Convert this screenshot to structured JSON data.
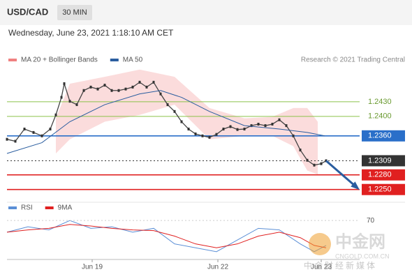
{
  "header": {
    "symbol": "USD/CAD",
    "timeframe": "30 MIN",
    "datetime": "Wednesday, June 23, 2021 1:18:10 AM CET",
    "credit": "Research © 2021 Trading Central"
  },
  "watermark": {
    "brand": "中金网",
    "site": "CNGOLD.COM.CN",
    "tagline": "中金财经新媒体"
  },
  "chart_data": [
    {
      "type": "line",
      "xlim": [
        0,
        505
      ],
      "ylim": [
        1.2231,
        1.2507
      ],
      "xticks": [
        {
          "value": 122,
          "label": "Jun 19"
        },
        {
          "value": 302,
          "label": "Jun 22"
        },
        {
          "value": 450,
          "label": "Jun 23"
        }
      ],
      "price": {
        "color": "#444444",
        "x": [
          0,
          12,
          25,
          38,
          50,
          62,
          70,
          78,
          82,
          90,
          100,
          110,
          120,
          130,
          140,
          150,
          160,
          170,
          180,
          190,
          200,
          210,
          220,
          230,
          240,
          250,
          260,
          270,
          280,
          290,
          300,
          310,
          320,
          330,
          340,
          350,
          360,
          370,
          380,
          390,
          400,
          410,
          420,
          430,
          440,
          450,
          457
        ],
        "values": [
          1.2353,
          1.2349,
          1.2374,
          1.2367,
          1.236,
          1.2374,
          1.2403,
          1.2439,
          1.2467,
          1.2431,
          1.2424,
          1.2453,
          1.246,
          1.2456,
          1.2464,
          1.2453,
          1.2453,
          1.2456,
          1.246,
          1.247,
          1.246,
          1.247,
          1.2446,
          1.2424,
          1.241,
          1.2389,
          1.2374,
          1.2364,
          1.236,
          1.2357,
          1.2363,
          1.2374,
          1.2379,
          1.2373,
          1.2374,
          1.2381,
          1.2384,
          1.2381,
          1.2384,
          1.2393,
          1.2381,
          1.236,
          1.2331,
          1.231,
          1.23,
          1.2303,
          1.2309
        ]
      },
      "bands": {
        "name": "MA 20 + Bollinger Bands",
        "color": "#f08080",
        "x": [
          70,
          90,
          140,
          190,
          240,
          290,
          340,
          380,
          410,
          430,
          445
        ],
        "upper": [
          1.2396,
          1.2467,
          1.2481,
          1.2496,
          1.2481,
          1.2417,
          1.2396,
          1.2399,
          1.2417,
          1.2417,
          1.2389
        ],
        "lower": [
          1.2324,
          1.2353,
          1.2389,
          1.2403,
          1.2424,
          1.2353,
          1.236,
          1.236,
          1.2339,
          1.2289,
          1.2281
        ]
      },
      "series": [
        {
          "name": "MA 50",
          "color": "#2a5d9f",
          "x": [
            0,
            50,
            90,
            140,
            190,
            220,
            250,
            290,
            340,
            390,
            430,
            455
          ],
          "values": [
            1.2324,
            1.2346,
            1.2389,
            1.2424,
            1.2446,
            1.2453,
            1.2439,
            1.241,
            1.2381,
            1.2374,
            1.2367,
            1.236
          ]
        }
      ],
      "levels": [
        {
          "value": 1.243,
          "label": "1.2430",
          "color": "#8bc34a"
        },
        {
          "value": 1.24,
          "label": "1.2400",
          "color": "#8bc34a"
        },
        {
          "value": 1.236,
          "label": "1.2360",
          "color": "#2a6fc9",
          "box": true
        },
        {
          "value": 1.2309,
          "label": "1.2309",
          "color": "#333333",
          "box": true,
          "dotted": true
        },
        {
          "value": 1.228,
          "label": "1.2280",
          "color": "#e02020",
          "box": true
        },
        {
          "value": 1.225,
          "label": "1.2250",
          "color": "#e02020",
          "box": true
        }
      ],
      "arrow": {
        "from": [
          457,
          1.2309
        ],
        "to": [
          502,
          1.2253
        ],
        "color": "#2a5d9f"
      }
    },
    {
      "type": "line",
      "xlim": [
        0,
        505
      ],
      "ylim": [
        20,
        80
      ],
      "yticks": [
        70
      ],
      "series": [
        {
          "name": "RSI",
          "color": "#5b8fd6",
          "x": [
            0,
            30,
            60,
            90,
            120,
            150,
            180,
            210,
            240,
            270,
            300,
            330,
            360,
            390,
            420,
            440,
            457
          ],
          "values": [
            55,
            62,
            58,
            70,
            60,
            62,
            55,
            60,
            40,
            35,
            30,
            45,
            60,
            58,
            40,
            30,
            38
          ]
        },
        {
          "name": "9MA",
          "color": "#e02020",
          "x": [
            0,
            30,
            60,
            90,
            120,
            150,
            180,
            210,
            240,
            270,
            300,
            330,
            360,
            390,
            420,
            440,
            457
          ],
          "values": [
            55,
            58,
            60,
            65,
            63,
            60,
            58,
            57,
            50,
            40,
            35,
            40,
            50,
            55,
            48,
            38,
            35
          ]
        }
      ]
    }
  ]
}
